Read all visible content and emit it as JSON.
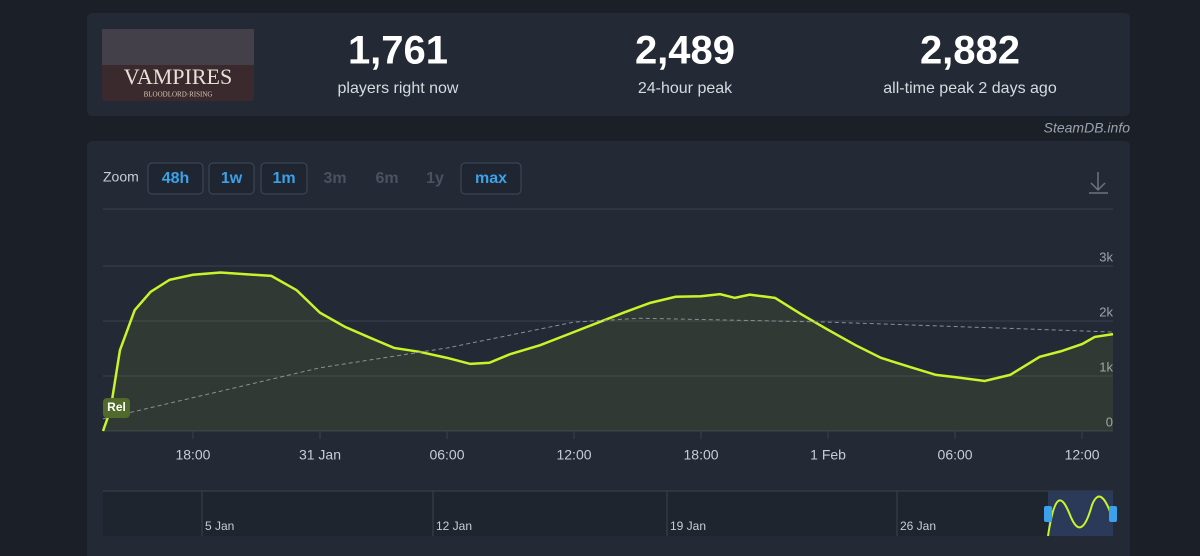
{
  "header": {
    "game_image": {
      "title": "VAMPIRES",
      "subtitle": "BLOODLORD·RISING"
    },
    "stats": [
      {
        "value": "1,761",
        "label": "players right now"
      },
      {
        "value": "2,489",
        "label": "24-hour peak"
      },
      {
        "value": "2,882",
        "label": "all-time peak 2 days ago"
      }
    ]
  },
  "source": "SteamDB.info",
  "zoom": {
    "label": "Zoom",
    "options": [
      "48h",
      "1w",
      "1m",
      "3m",
      "6m",
      "1y",
      "max"
    ],
    "enabled": [
      true,
      true,
      true,
      false,
      false,
      false,
      true
    ]
  },
  "chart_data": {
    "type": "line",
    "x": [
      13.75,
      14.1,
      14.55,
      15.25,
      16,
      16.9,
      18,
      19.3,
      20.5,
      21.7,
      22.9,
      24,
      25.2,
      26.4,
      27.5,
      28.7,
      30,
      31.1,
      32,
      33,
      34.4,
      36,
      37.2,
      38.4,
      39.6,
      40.8,
      42,
      42.9,
      43.6,
      44.3,
      45.5,
      46.7,
      48,
      49.3,
      50.5,
      51.9,
      53.1,
      54,
      55.4,
      56.6,
      58,
      59,
      60,
      60.6,
      61.46
    ],
    "series": [
      {
        "color": "#c8f52a",
        "values": [
          0,
          380,
          1470,
          2200,
          2530,
          2750,
          2840,
          2882,
          2850,
          2820,
          2560,
          2150,
          1890,
          1690,
          1510,
          1440,
          1330,
          1220,
          1240,
          1400,
          1560,
          1800,
          1980,
          2160,
          2330,
          2440,
          2450,
          2489,
          2420,
          2480,
          2420,
          2130,
          1840,
          1560,
          1330,
          1160,
          1020,
          980,
          910,
          1020,
          1350,
          1450,
          1580,
          1710,
          1761
        ]
      },
      {
        "color": "#8a8f98",
        "dashed": true,
        "x": [
          13.75,
          24,
          30,
          36,
          39.1,
          48,
          61.46
        ],
        "values": [
          220,
          1150,
          1510,
          1980,
          2050,
          1980,
          1800
        ]
      }
    ],
    "xlim": [
      13.75,
      61.46
    ],
    "xticks": [
      {
        "value": 18,
        "label": "18:00"
      },
      {
        "value": 24,
        "label": "31 Jan"
      },
      {
        "value": 30,
        "label": "06:00"
      },
      {
        "value": 36,
        "label": "12:00"
      },
      {
        "value": 42,
        "label": "18:00"
      },
      {
        "value": 48,
        "label": "1 Feb"
      },
      {
        "value": 54,
        "label": "06:00"
      },
      {
        "value": 60,
        "label": "12:00"
      }
    ],
    "ylim": [
      0,
      3000
    ],
    "yticks": [
      0,
      {
        "value": 1000,
        "label": "1k"
      },
      {
        "value": 2000,
        "label": "2k"
      },
      {
        "value": 3000,
        "label": "3k"
      }
    ],
    "grid": true,
    "annotations": [
      {
        "x": 13.75,
        "label": "Rel"
      }
    ]
  },
  "navigator": {
    "labels": [
      "5 Jan",
      "12 Jan",
      "19 Jan",
      "26 Jan"
    ]
  }
}
